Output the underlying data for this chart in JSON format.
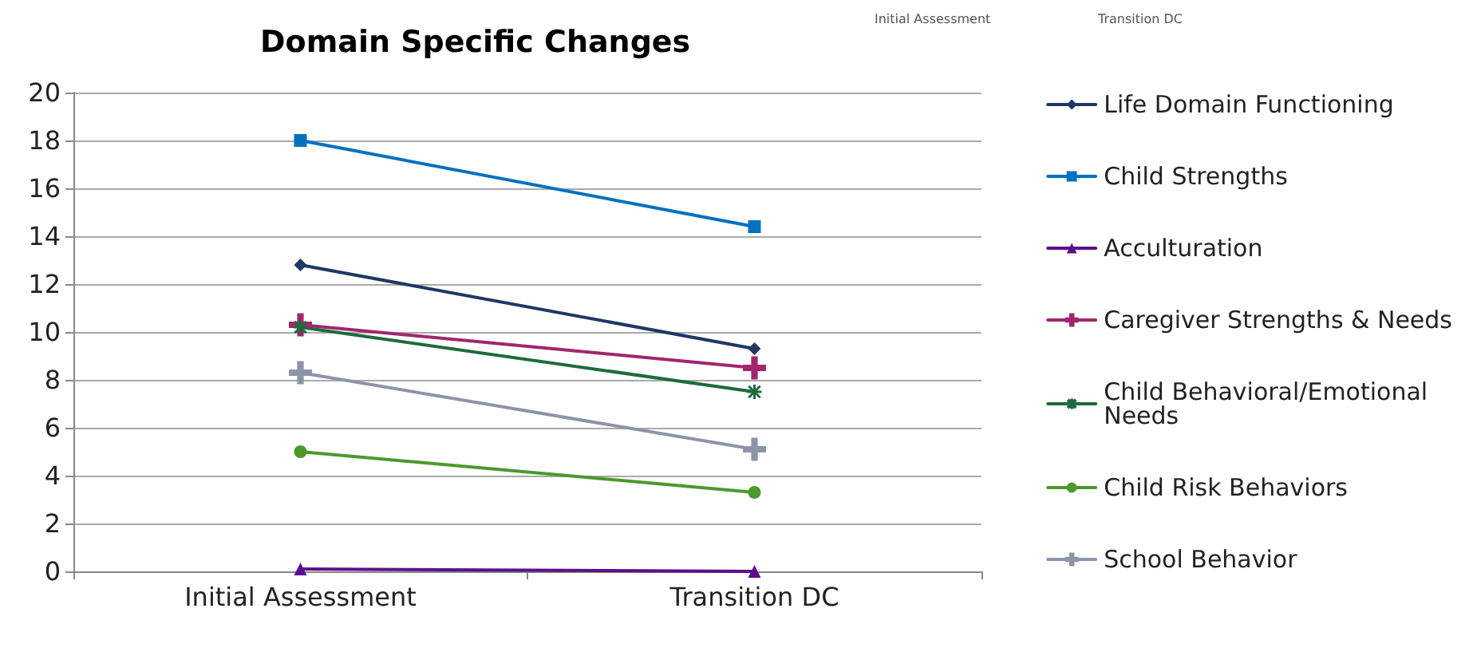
{
  "chart_data": {
    "type": "line",
    "title": "Domain Specific Changes",
    "categories": [
      "Initial Assessment",
      "Transition DC"
    ],
    "series": [
      {
        "name": "Life Domain Functioning",
        "color": "#1f3864",
        "marker": "diamond",
        "values": [
          12.8,
          9.3
        ]
      },
      {
        "name": "Child Strengths",
        "color": "#0070c0",
        "marker": "square",
        "values": [
          18,
          14.4
        ]
      },
      {
        "name": "Acculturation",
        "color": "#5b0f8c",
        "marker": "triangle",
        "values": [
          0.1,
          0
        ]
      },
      {
        "name": "Caregiver Strengths & Needs",
        "color": "#a0266e",
        "marker": "cross",
        "values": [
          10.3,
          8.5
        ]
      },
      {
        "name": "Child Behavioral/Emotional Needs",
        "color": "#1e6b3c",
        "marker": "star",
        "values": [
          10.2,
          7.5
        ]
      },
      {
        "name": "Child Risk Behaviors",
        "color": "#4a9a2c",
        "marker": "circle",
        "values": [
          5,
          3.3
        ]
      },
      {
        "name": "School Behavior",
        "color": "#8c94ab",
        "marker": "cross",
        "values": [
          8.3,
          5.1
        ]
      }
    ],
    "ylim": [
      0,
      20
    ],
    "yticks": [
      0,
      2,
      4,
      6,
      8,
      10,
      12,
      14,
      16,
      18,
      20
    ],
    "grid": "y",
    "legend": "right",
    "line_style": "solid",
    "annotations": [
      "Initial Assessment",
      "Transition DC"
    ]
  }
}
